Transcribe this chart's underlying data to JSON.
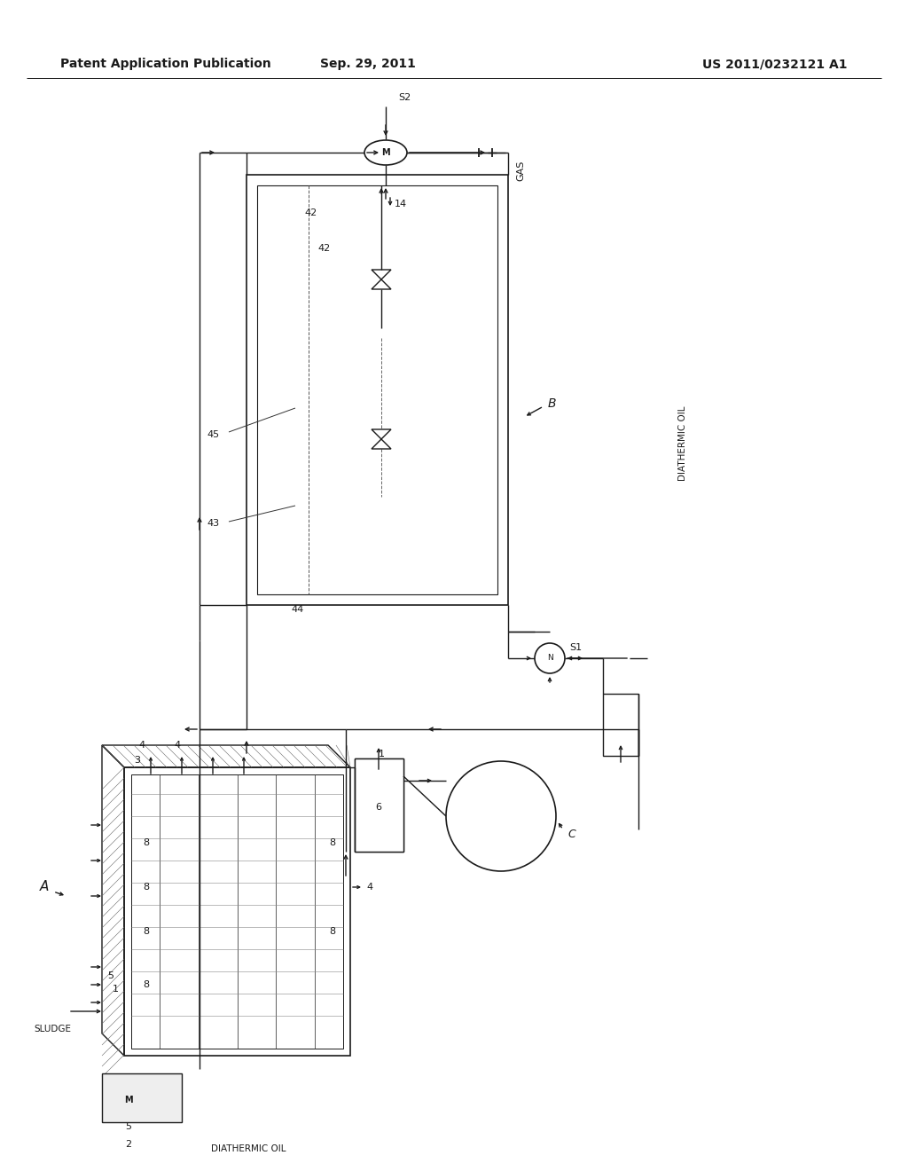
{
  "header_left": "Patent Application Publication",
  "header_center": "Sep. 29, 2011",
  "header_right": "US 2011/0232121 A1",
  "bg_color": "#ffffff",
  "line_color": "#1a1a1a",
  "header_font_size": 10,
  "label_font_size": 8
}
